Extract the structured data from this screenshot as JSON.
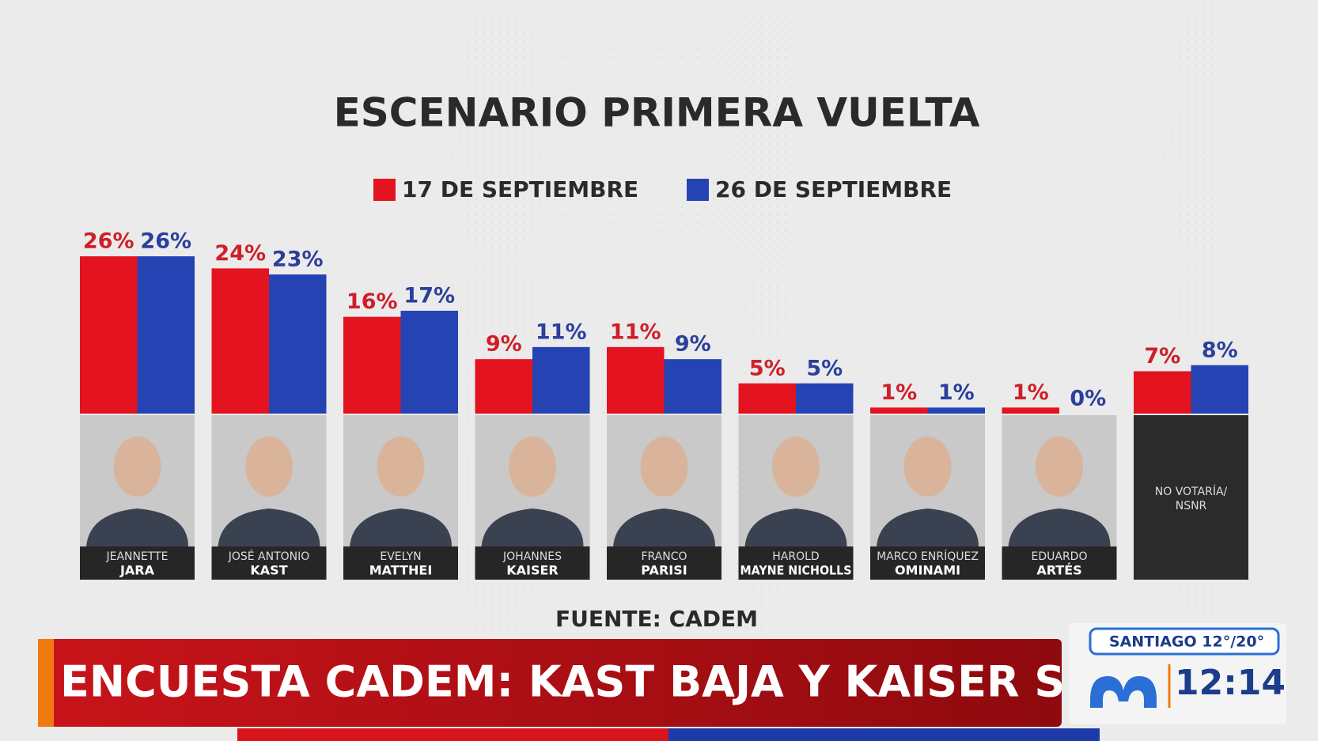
{
  "chart_data": {
    "type": "bar",
    "title": "ESCENARIO PRIMERA VUELTA",
    "categories": [
      [
        "JEANNETTE",
        "JARA"
      ],
      [
        "JOSÉ ANTONIO",
        "KAST"
      ],
      [
        "EVELYN",
        "MATTHEI"
      ],
      [
        "JOHANNES",
        "KAISER"
      ],
      [
        "FRANCO",
        "PARISI"
      ],
      [
        "HAROLD",
        "MAYNE NICHOLLS"
      ],
      [
        "MARCO ENRÍQUEZ",
        "OMINAMI"
      ],
      [
        "EDUARDO",
        "ARTÉS"
      ],
      [
        "NO VOTARÍA/",
        "NSNR"
      ]
    ],
    "series": [
      {
        "name": "17 DE SEPTIEMBRE",
        "color": "#e3141f",
        "label_color": "#d01e28",
        "values": [
          26,
          24,
          16,
          9,
          11,
          5,
          1,
          1,
          7
        ],
        "value_labels": [
          "26%",
          "24%",
          "16%",
          "9%",
          "11%",
          "5%",
          "1%",
          "1%",
          "7%"
        ]
      },
      {
        "name": "26 DE SEPTIEMBRE",
        "color": "#2643b3",
        "label_color": "#2b3f9c",
        "values": [
          26,
          23,
          17,
          11,
          9,
          5,
          1,
          0,
          8
        ],
        "value_labels": [
          "26%",
          "23%",
          "17%",
          "11%",
          "9%",
          "5%",
          "1%",
          "0%",
          "8%"
        ]
      }
    ],
    "source": "FUENTE: CADEM"
  },
  "broadcast": {
    "headline": "ENCUESTA CADEM: KAST BAJA Y KAISER SUBE",
    "weather": "SANTIAGO 12°/20°",
    "time": "12:14"
  }
}
